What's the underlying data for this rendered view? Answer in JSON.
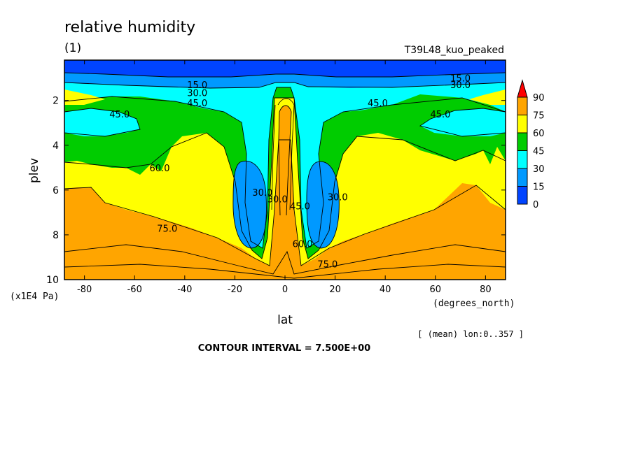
{
  "chart_data": {
    "type": "contour",
    "title": "relative humidity",
    "subtitle": "(1)",
    "run_label": "T39L48_kuo_peaked",
    "xlabel": "lat",
    "x_units": "(degrees_north)",
    "ylabel": "plev",
    "y_units": "(x1E4 Pa)",
    "x_ticks": [
      -80,
      -60,
      -40,
      -20,
      0,
      20,
      40,
      60,
      80
    ],
    "y_ticks": [
      2,
      4,
      6,
      8,
      10
    ],
    "xlim": [
      -88,
      88
    ],
    "ylim": [
      0.2,
      10
    ],
    "y_reversed": true,
    "mean_note": "[ (mean) lon:0..357 ]",
    "contour_interval_text": "CONTOUR INTERVAL = 7.500E+00",
    "colorbar": {
      "levels": [
        "90",
        "75",
        "60",
        "45",
        "30",
        "15",
        "0"
      ],
      "colors": [
        "#ff0000",
        "#ffa500",
        "#ffff00",
        "#00cc00",
        "#00ffff",
        "#0099ff",
        "#0044ff"
      ]
    },
    "contour_labels": [
      {
        "text": "15.0",
        "lat": -35,
        "p": 1.3
      },
      {
        "text": "30.0",
        "lat": -35,
        "p": 1.65
      },
      {
        "text": "45.0",
        "lat": -35,
        "p": 2.1
      },
      {
        "text": "45.0",
        "lat": -66,
        "p": 2.6
      },
      {
        "text": "60.0",
        "lat": -50,
        "p": 5.0
      },
      {
        "text": "75.0",
        "lat": -47,
        "p": 7.7
      },
      {
        "text": "30.0",
        "lat": -9,
        "p": 6.1
      },
      {
        "text": "30.0",
        "lat": -3,
        "p": 6.4
      },
      {
        "text": "45.0",
        "lat": 6,
        "p": 6.7
      },
      {
        "text": "60.0",
        "lat": 7,
        "p": 8.4
      },
      {
        "text": "75.0",
        "lat": 17,
        "p": 9.3
      },
      {
        "text": "30.0",
        "lat": 21,
        "p": 6.3
      },
      {
        "text": "45.0",
        "lat": 37,
        "p": 2.1
      },
      {
        "text": "45.0",
        "lat": 62,
        "p": 2.6
      },
      {
        "text": "15.0",
        "lat": 70,
        "p": 1.0
      },
      {
        "text": "30.0",
        "lat": 70,
        "p": 1.3
      }
    ]
  }
}
